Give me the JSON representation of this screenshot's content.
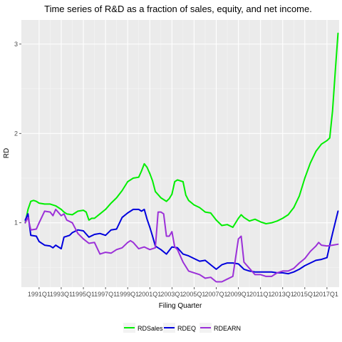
{
  "chart_data": {
    "type": "line",
    "title": "Time series of R&D as a fraction of sales, equity, and net income.",
    "xlabel": "Filing Quarter",
    "ylabel": "RD",
    "x_range": [
      1989.4,
      2018.1
    ],
    "ylim": [
      0.28,
      3.27
    ],
    "y_ticks": [
      1,
      2,
      3
    ],
    "x_ticks": [
      {
        "label": "1991Q1",
        "value": 1991.0
      },
      {
        "label": "1993Q1",
        "value": 1993.0
      },
      {
        "label": "1995Q1",
        "value": 1995.0
      },
      {
        "label": "1997Q1",
        "value": 1997.0
      },
      {
        "label": "1999Q1",
        "value": 1999.0
      },
      {
        "label": "2001Q1",
        "value": 2001.0
      },
      {
        "label": "2003Q1",
        "value": 2003.0
      },
      {
        "label": "2005Q1",
        "value": 2005.0
      },
      {
        "label": "2007Q1",
        "value": 2007.0
      },
      {
        "label": "2009Q1",
        "value": 2009.0
      },
      {
        "label": "2011Q1",
        "value": 2011.0
      },
      {
        "label": "2013Q1",
        "value": 2013.0
      },
      {
        "label": "2015Q1",
        "value": 2015.0
      },
      {
        "label": "2017Q1",
        "value": 2017.0
      }
    ],
    "grid": true,
    "legend_position": "bottom",
    "series": [
      {
        "name": "RDSales",
        "color": "#00ee00",
        "points": [
          [
            1989.75,
            1.0
          ],
          [
            1990.0,
            1.15
          ],
          [
            1990.25,
            1.24
          ],
          [
            1990.5,
            1.25
          ],
          [
            1990.75,
            1.24
          ],
          [
            1991.0,
            1.22
          ],
          [
            1991.5,
            1.21
          ],
          [
            1992.0,
            1.21
          ],
          [
            1992.5,
            1.19
          ],
          [
            1993.0,
            1.15
          ],
          [
            1993.25,
            1.12
          ],
          [
            1993.5,
            1.1
          ],
          [
            1994.0,
            1.09
          ],
          [
            1994.5,
            1.13
          ],
          [
            1995.0,
            1.14
          ],
          [
            1995.25,
            1.12
          ],
          [
            1995.5,
            1.03
          ],
          [
            1995.75,
            1.05
          ],
          [
            1996.0,
            1.05
          ],
          [
            1996.5,
            1.1
          ],
          [
            1997.0,
            1.15
          ],
          [
            1997.5,
            1.22
          ],
          [
            1998.0,
            1.28
          ],
          [
            1998.5,
            1.36
          ],
          [
            1999.0,
            1.46
          ],
          [
            1999.5,
            1.5
          ],
          [
            2000.0,
            1.51
          ],
          [
            2000.25,
            1.58
          ],
          [
            2000.5,
            1.66
          ],
          [
            2000.75,
            1.62
          ],
          [
            2001.0,
            1.55
          ],
          [
            2001.25,
            1.47
          ],
          [
            2001.5,
            1.35
          ],
          [
            2002.0,
            1.28
          ],
          [
            2002.5,
            1.24
          ],
          [
            2002.75,
            1.27
          ],
          [
            2003.0,
            1.32
          ],
          [
            2003.25,
            1.46
          ],
          [
            2003.5,
            1.48
          ],
          [
            2004.0,
            1.46
          ],
          [
            2004.25,
            1.31
          ],
          [
            2004.5,
            1.25
          ],
          [
            2005.0,
            1.2
          ],
          [
            2005.5,
            1.17
          ],
          [
            2006.0,
            1.12
          ],
          [
            2006.5,
            1.11
          ],
          [
            2007.0,
            1.03
          ],
          [
            2007.5,
            0.97
          ],
          [
            2008.0,
            0.98
          ],
          [
            2008.5,
            0.95
          ],
          [
            2009.0,
            1.05
          ],
          [
            2009.25,
            1.09
          ],
          [
            2009.5,
            1.06
          ],
          [
            2010.0,
            1.02
          ],
          [
            2010.5,
            1.04
          ],
          [
            2011.0,
            1.01
          ],
          [
            2011.5,
            0.99
          ],
          [
            2012.0,
            1.0
          ],
          [
            2012.5,
            1.02
          ],
          [
            2013.0,
            1.05
          ],
          [
            2013.5,
            1.09
          ],
          [
            2014.0,
            1.17
          ],
          [
            2014.5,
            1.3
          ],
          [
            2015.0,
            1.5
          ],
          [
            2015.5,
            1.67
          ],
          [
            2016.0,
            1.8
          ],
          [
            2016.5,
            1.88
          ],
          [
            2017.0,
            1.92
          ],
          [
            2017.25,
            1.95
          ],
          [
            2017.5,
            2.25
          ],
          [
            2017.75,
            2.7
          ],
          [
            2018.0,
            3.12
          ]
        ]
      },
      {
        "name": "RDEQ",
        "color": "#0000dd",
        "points": [
          [
            1989.75,
            1.03
          ],
          [
            1990.0,
            1.1
          ],
          [
            1990.25,
            0.86
          ],
          [
            1990.75,
            0.85
          ],
          [
            1991.0,
            0.79
          ],
          [
            1991.5,
            0.75
          ],
          [
            1992.0,
            0.74
          ],
          [
            1992.25,
            0.72
          ],
          [
            1992.5,
            0.75
          ],
          [
            1993.0,
            0.71
          ],
          [
            1993.25,
            0.84
          ],
          [
            1993.75,
            0.86
          ],
          [
            1994.0,
            0.89
          ],
          [
            1994.5,
            0.92
          ],
          [
            1995.0,
            0.91
          ],
          [
            1995.5,
            0.84
          ],
          [
            1996.0,
            0.87
          ],
          [
            1996.5,
            0.88
          ],
          [
            1997.0,
            0.86
          ],
          [
            1997.5,
            0.92
          ],
          [
            1998.0,
            0.93
          ],
          [
            1998.5,
            1.06
          ],
          [
            1999.0,
            1.11
          ],
          [
            1999.5,
            1.15
          ],
          [
            2000.0,
            1.15
          ],
          [
            2000.25,
            1.13
          ],
          [
            2000.5,
            1.15
          ],
          [
            2000.75,
            1.04
          ],
          [
            2001.0,
            0.95
          ],
          [
            2001.25,
            0.85
          ],
          [
            2001.5,
            0.74
          ],
          [
            2002.0,
            0.7
          ],
          [
            2002.5,
            0.65
          ],
          [
            2003.0,
            0.73
          ],
          [
            2003.5,
            0.72
          ],
          [
            2004.0,
            0.65
          ],
          [
            2004.5,
            0.63
          ],
          [
            2005.0,
            0.6
          ],
          [
            2005.5,
            0.57
          ],
          [
            2006.0,
            0.58
          ],
          [
            2006.5,
            0.53
          ],
          [
            2007.0,
            0.48
          ],
          [
            2007.5,
            0.53
          ],
          [
            2008.0,
            0.55
          ],
          [
            2008.5,
            0.55
          ],
          [
            2009.0,
            0.54
          ],
          [
            2009.5,
            0.48
          ],
          [
            2010.0,
            0.46
          ],
          [
            2010.5,
            0.45
          ],
          [
            2011.0,
            0.45
          ],
          [
            2011.5,
            0.45
          ],
          [
            2012.0,
            0.45
          ],
          [
            2012.5,
            0.44
          ],
          [
            2013.0,
            0.44
          ],
          [
            2013.5,
            0.43
          ],
          [
            2014.0,
            0.45
          ],
          [
            2014.5,
            0.48
          ],
          [
            2015.0,
            0.52
          ],
          [
            2015.5,
            0.55
          ],
          [
            2016.0,
            0.58
          ],
          [
            2016.5,
            0.59
          ],
          [
            2017.0,
            0.61
          ],
          [
            2017.25,
            0.75
          ],
          [
            2017.5,
            0.88
          ],
          [
            2018.0,
            1.13
          ]
        ]
      },
      {
        "name": "RDEARN",
        "color": "#9b30d8",
        "points": [
          [
            1989.75,
            1.0
          ],
          [
            1990.0,
            1.06
          ],
          [
            1990.25,
            0.92
          ],
          [
            1990.75,
            0.93
          ],
          [
            1991.0,
            1.0
          ],
          [
            1991.5,
            1.13
          ],
          [
            1992.0,
            1.12
          ],
          [
            1992.25,
            1.08
          ],
          [
            1992.5,
            1.15
          ],
          [
            1993.0,
            1.08
          ],
          [
            1993.25,
            1.1
          ],
          [
            1993.5,
            1.03
          ],
          [
            1994.0,
            1.0
          ],
          [
            1994.5,
            0.88
          ],
          [
            1995.0,
            0.82
          ],
          [
            1995.5,
            0.77
          ],
          [
            1996.0,
            0.78
          ],
          [
            1996.5,
            0.65
          ],
          [
            1997.0,
            0.67
          ],
          [
            1997.5,
            0.66
          ],
          [
            1998.0,
            0.7
          ],
          [
            1998.5,
            0.72
          ],
          [
            1999.0,
            0.78
          ],
          [
            1999.25,
            0.8
          ],
          [
            1999.5,
            0.78
          ],
          [
            2000.0,
            0.71
          ],
          [
            2000.5,
            0.73
          ],
          [
            2001.0,
            0.7
          ],
          [
            2001.5,
            0.72
          ],
          [
            2001.75,
            1.12
          ],
          [
            2002.0,
            1.12
          ],
          [
            2002.25,
            1.1
          ],
          [
            2002.5,
            0.85
          ],
          [
            2002.75,
            0.85
          ],
          [
            2003.0,
            0.9
          ],
          [
            2003.25,
            0.73
          ],
          [
            2003.5,
            0.7
          ],
          [
            2004.0,
            0.56
          ],
          [
            2004.5,
            0.46
          ],
          [
            2005.0,
            0.44
          ],
          [
            2005.5,
            0.42
          ],
          [
            2006.0,
            0.38
          ],
          [
            2006.5,
            0.39
          ],
          [
            2007.0,
            0.34
          ],
          [
            2007.5,
            0.34
          ],
          [
            2008.0,
            0.37
          ],
          [
            2008.5,
            0.4
          ],
          [
            2009.0,
            0.82
          ],
          [
            2009.25,
            0.85
          ],
          [
            2009.5,
            0.56
          ],
          [
            2010.0,
            0.49
          ],
          [
            2010.5,
            0.42
          ],
          [
            2011.0,
            0.42
          ],
          [
            2011.5,
            0.4
          ],
          [
            2012.0,
            0.4
          ],
          [
            2012.5,
            0.44
          ],
          [
            2013.0,
            0.46
          ],
          [
            2013.5,
            0.46
          ],
          [
            2014.0,
            0.49
          ],
          [
            2014.5,
            0.55
          ],
          [
            2015.0,
            0.6
          ],
          [
            2015.5,
            0.68
          ],
          [
            2016.0,
            0.74
          ],
          [
            2016.25,
            0.78
          ],
          [
            2016.5,
            0.75
          ],
          [
            2017.0,
            0.74
          ],
          [
            2017.5,
            0.75
          ],
          [
            2018.0,
            0.76
          ]
        ]
      }
    ]
  }
}
